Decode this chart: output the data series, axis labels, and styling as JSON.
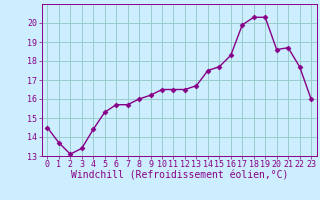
{
  "x": [
    0,
    1,
    2,
    3,
    4,
    5,
    6,
    7,
    8,
    9,
    10,
    11,
    12,
    13,
    14,
    15,
    16,
    17,
    18,
    19,
    20,
    21,
    22,
    23
  ],
  "y": [
    14.5,
    13.7,
    13.1,
    13.4,
    14.4,
    15.3,
    15.7,
    15.7,
    16.0,
    16.2,
    16.5,
    16.5,
    16.5,
    16.7,
    17.5,
    17.7,
    18.3,
    19.9,
    20.3,
    20.3,
    18.6,
    18.7,
    17.7,
    16.0
  ],
  "line_color": "#880088",
  "marker": "D",
  "marker_size": 2.5,
  "bg_color": "#cceeff",
  "grid_color": "#99cccc",
  "xlabel": "Windchill (Refroidissement éolien,°C)",
  "xlabel_color": "#880088",
  "ylim": [
    13,
    21
  ],
  "xlim": [
    -0.5,
    23.5
  ],
  "yticks": [
    13,
    14,
    15,
    16,
    17,
    18,
    19,
    20
  ],
  "xticks": [
    0,
    1,
    2,
    3,
    4,
    5,
    6,
    7,
    8,
    9,
    10,
    11,
    12,
    13,
    14,
    15,
    16,
    17,
    18,
    19,
    20,
    21,
    22,
    23
  ],
  "tick_label_color": "#880088",
  "tick_fontsize": 6.0,
  "xlabel_fontsize": 7.0,
  "line_width": 1.0
}
